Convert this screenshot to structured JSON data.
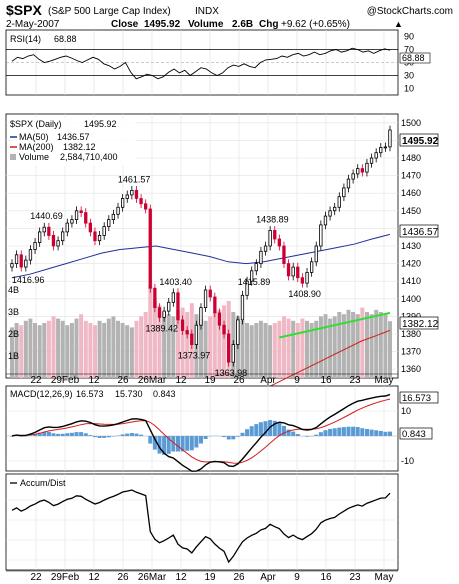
{
  "header": {
    "symbol": "$SPX",
    "name": "(S&P 500 Large Cap Index)",
    "exchange": "INDX",
    "watermark": "@StockCharts.com",
    "date": "2-May-2007",
    "close_label": "Close",
    "close": "1495.92",
    "volume_label": "Volume",
    "volume": "2.6B",
    "chg_label": "Chg",
    "chg": "+9.62 (+0.65%)",
    "chg_arrow": "▲"
  },
  "colors": {
    "up": "#000000",
    "down": "#cc0033",
    "ma50": "#1f2f9e",
    "ma200": "#d11c1c",
    "trendline": "#33dd33",
    "macd_hist": "#5b9bd5",
    "vol_up": "#b3b3b3",
    "vol_down": "#efb8c4",
    "axis_bg": "#ffffff"
  },
  "rsi": {
    "label": "RSI(14)",
    "value": "68.88",
    "badge": "68.88",
    "levels": [
      "90",
      "70",
      "50",
      "30",
      "10"
    ]
  },
  "price": {
    "label": "$SPX (Daily)",
    "value": "1495.92",
    "ma50_label": "MA(50)",
    "ma50_value": "1436.57",
    "ma200_label": "MA(200)",
    "ma200_value": "1382.12",
    "volume_label": "Volume",
    "volume_value": "2,584,710,400",
    "badges": {
      "close": "1495.92",
      "ma50": "1436.57",
      "ma200": "1382.12"
    },
    "ticks": [
      "1500",
      "1490",
      "1480",
      "1470",
      "1460",
      "1450",
      "1440",
      "1430",
      "1420",
      "1410",
      "1400",
      "1390",
      "1380",
      "1370",
      "1360"
    ],
    "volume_ticks": [
      "4B",
      "3B",
      "2B",
      "1B"
    ],
    "annotations": [
      "1461.57",
      "1440.69",
      "1416.96",
      "1415.89",
      "1403.40",
      "1389.42",
      "1373.97",
      "1363.98",
      "1438.89",
      "1408.90"
    ]
  },
  "macd": {
    "label": "MACD(12,26,9)",
    "macd": "16.573",
    "signal": "15.730",
    "hist": "0.843",
    "badge_macd": "16.573",
    "badge_hist": "0.843",
    "ticks": [
      "10",
      "0",
      "-10"
    ]
  },
  "ad": {
    "label": "Accum/Dist"
  },
  "x_axis": [
    "22",
    "29Feb",
    "12",
    "26",
    "26Mar",
    "12",
    "19",
    "26",
    "Apr",
    "9",
    "16",
    "23",
    "May"
  ],
  "chart_data": [
    {
      "type": "line",
      "title": "RSI(14)",
      "ylim": [
        0,
        100
      ],
      "current": 68.88,
      "reference_lines": [
        70,
        50,
        30
      ],
      "values": [
        52,
        58,
        56,
        60,
        62,
        55,
        50,
        52,
        55,
        58,
        60,
        57,
        53,
        50,
        54,
        58,
        55,
        48,
        45,
        40,
        44,
        50,
        35,
        25,
        28,
        32,
        30,
        25,
        28,
        35,
        40,
        34,
        38,
        30,
        36,
        42,
        40,
        34,
        30,
        34,
        42,
        46,
        44,
        48,
        44,
        42,
        50,
        54,
        55,
        56,
        60,
        58,
        62,
        64,
        60,
        62,
        66,
        62,
        64,
        68,
        70,
        66,
        68,
        72,
        70,
        66,
        68,
        64,
        68,
        71,
        68.88
      ]
    },
    {
      "type": "candlestick",
      "title": "$SPX (Daily)",
      "ylim": [
        1355,
        1505
      ],
      "x_labels": [
        "22",
        "29Feb",
        "12",
        "26",
        "26Mar",
        "12",
        "19",
        "26",
        "Apr",
        "9",
        "16",
        "23",
        "May"
      ],
      "close": [
        1420,
        1425,
        1418,
        1422,
        1428,
        1432,
        1438,
        1440.69,
        1436,
        1430,
        1433,
        1438,
        1443,
        1445,
        1450,
        1449,
        1443,
        1438,
        1433,
        1436,
        1441,
        1445,
        1448,
        1452,
        1457,
        1459,
        1461.57,
        1457,
        1454,
        1451,
        1406,
        1395,
        1389.42,
        1393,
        1398,
        1403.4,
        1388,
        1382,
        1380,
        1373.97,
        1385,
        1395,
        1405,
        1401,
        1392,
        1385,
        1380,
        1363.98,
        1374,
        1388,
        1402,
        1410,
        1415.89,
        1420,
        1427,
        1430,
        1438.89,
        1434,
        1430,
        1420,
        1413,
        1418,
        1412,
        1408.9,
        1415,
        1421,
        1430,
        1442,
        1447,
        1450,
        1452,
        1458,
        1463,
        1468,
        1471,
        1474,
        1472,
        1477,
        1480,
        1483,
        1486,
        1486.3,
        1495.92
      ],
      "annotations": [
        {
          "label": "1461.57",
          "value": 1461.57
        },
        {
          "label": "1440.69",
          "value": 1440.69
        },
        {
          "label": "1416.96",
          "value": 1416.96
        },
        {
          "label": "1415.89",
          "value": 1415.89
        },
        {
          "label": "1403.40",
          "value": 1403.4
        },
        {
          "label": "1389.42",
          "value": 1389.42
        },
        {
          "label": "1373.97",
          "value": 1373.97
        },
        {
          "label": "1363.98",
          "value": 1363.98
        },
        {
          "label": "1438.89",
          "value": 1438.89
        },
        {
          "label": "1408.90",
          "value": 1408.9
        }
      ],
      "overlays": [
        {
          "name": "MA(50)",
          "last": 1436.57,
          "start": 1412,
          "values_hint": [
            1412,
            1414,
            1417,
            1420,
            1423,
            1426,
            1428,
            1429,
            1430,
            1428,
            1426,
            1424,
            1421,
            1420,
            1421,
            1423,
            1425,
            1427,
            1429,
            1431,
            1434,
            1436.57
          ]
        },
        {
          "name": "MA(200)",
          "last": 1382.12,
          "start": 1340,
          "values_hint": [
            1340,
            1344,
            1348,
            1352,
            1356,
            1360,
            1364,
            1368,
            1372,
            1376,
            1379,
            1382.12
          ]
        },
        {
          "name": "Trendline",
          "from": 1378,
          "to": 1392
        }
      ]
    },
    {
      "type": "bar",
      "title": "Volume",
      "ylim": [
        0,
        4.5
      ],
      "unit": "B",
      "last": 2.58,
      "values": [
        2.3,
        2.5,
        2.4,
        2.6,
        2.7,
        2.5,
        2.4,
        2.5,
        2.6,
        2.8,
        2.7,
        2.6,
        2.4,
        2.5,
        2.7,
        2.9,
        2.6,
        2.5,
        2.4,
        2.6,
        2.5,
        2.7,
        2.8,
        2.6,
        2.5,
        2.4,
        2.3,
        2.6,
        2.8,
        3.0,
        4.2,
        3.6,
        3.3,
        3.0,
        2.9,
        2.8,
        3.1,
        3.2,
        3.0,
        3.4,
        2.9,
        2.7,
        2.6,
        2.8,
        3.0,
        3.1,
        3.3,
        3.5,
        3.0,
        2.8,
        2.6,
        2.5,
        2.4,
        2.5,
        2.6,
        2.5,
        2.4,
        2.5,
        2.6,
        2.8,
        2.7,
        2.6,
        2.5,
        2.7,
        2.6,
        2.5,
        2.6,
        2.8,
        2.9,
        2.7,
        2.8,
        3.0,
        2.9,
        3.1,
        3.0,
        2.9,
        3.2,
        3.0,
        2.9,
        3.1,
        3.0,
        2.9,
        2.58
      ]
    },
    {
      "type": "line",
      "title": "MACD(12,26,9)",
      "ylim": [
        -14,
        20
      ],
      "series": [
        {
          "name": "MACD(12,26,9)",
          "last": 16.573
        },
        {
          "name": "Signal",
          "last": 15.73
        },
        {
          "name": "Histogram",
          "last": 0.843
        }
      ]
    },
    {
      "type": "line",
      "title": "Accum/Dist"
    }
  ]
}
